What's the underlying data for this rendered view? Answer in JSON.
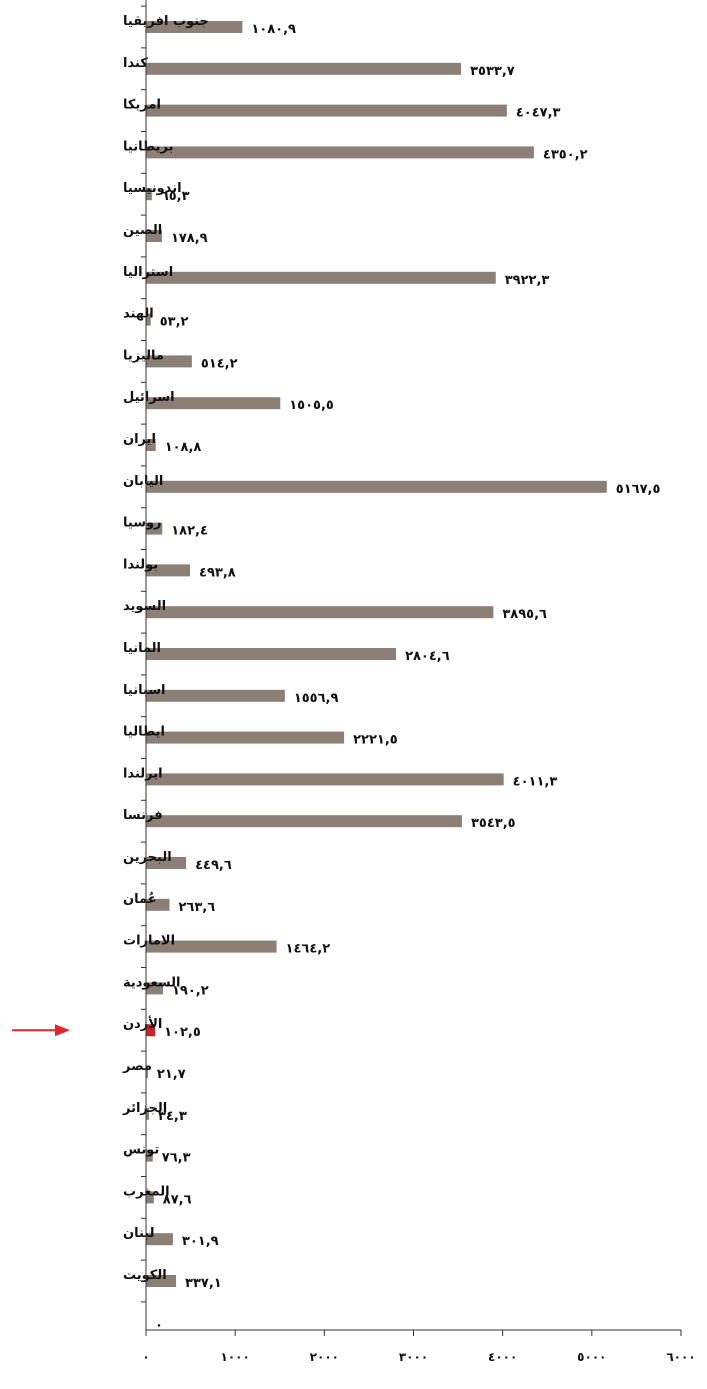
{
  "chart_data": {
    "type": "bar",
    "orientation": "horizontal",
    "categories": [
      "جنوب افريقيا",
      "كندا",
      "امريكا",
      "بريطانيا",
      "اندونيسيا",
      "الصين",
      "استراليا",
      "الهند",
      "ماليزيا",
      "اسرائيل",
      "ايران",
      "اليابان",
      "روسيا",
      "بولندا",
      "السويد",
      "المانيا",
      "اسبانيا",
      "ايطاليا",
      "ايرلندا",
      "فرنسا",
      "البحرين",
      "عُمان",
      "الامارات",
      "السعودية",
      "الأردن",
      "مصر",
      "الجزائر",
      "تونس",
      "المغرب",
      "لبنان",
      "الكويت"
    ],
    "values": [
      1080.9,
      3533.7,
      4047.3,
      4350.2,
      65.3,
      178.9,
      3922.3,
      53.2,
      514.2,
      1505.5,
      108.8,
      5167.5,
      182.4,
      493.8,
      3895.6,
      2804.6,
      1556.9,
      2221.5,
      4011.3,
      3543.5,
      449.6,
      263.6,
      1464.2,
      190.2,
      102.5,
      21.7,
      34.3,
      76.3,
      87.6,
      301.9,
      337.1
    ],
    "value_labels": [
      "١٠٨٠,٩",
      "٣٥٣٣,٧",
      "٤٠٤٧,٣",
      "٤٣٥٠,٢",
      "٦٥,٣",
      "١٧٨,٩",
      "٣٩٢٢,٣",
      "٥٣,٢",
      "٥١٤,٢",
      "١٥٠٥,٥",
      "١٠٨,٨",
      "٥١٦٧,٥",
      "١٨٢,٤",
      "٤٩٣,٨",
      "٣٨٩٥,٦",
      "٢٨٠٤,٦",
      "١٥٥٦,٩",
      "٢٢٢١,٥",
      "٤٠١١,٣",
      "٣٥٤٣,٥",
      "٤٤٩,٦",
      "٢٦٣,٦",
      "١٤٦٤,٢",
      "١٩٠,٢",
      "١٠٢,٥",
      "٢١,٧",
      "٣٤,٣",
      "٧٦,٣",
      "٨٧,٦",
      "٣٠١,٩",
      "٣٣٧,١"
    ],
    "extra_value_label": "٠",
    "highlight_index": 24,
    "xlim": [
      0,
      6000
    ],
    "xticks": [
      0,
      1000,
      2000,
      3000,
      4000,
      5000,
      6000
    ],
    "xtick_labels": [
      "٠",
      "١٠٠٠",
      "٢٠٠٠",
      "٣٠٠٠",
      "٤٠٠٠",
      "٥٠٠٠",
      "٦٠٠٠"
    ],
    "title": "",
    "xlabel": "",
    "ylabel": "",
    "grid": false,
    "colors": {
      "bar": "#8c7f76",
      "highlight": "#c8232c",
      "arrow": "#e0262b",
      "axis": "#333333"
    }
  }
}
